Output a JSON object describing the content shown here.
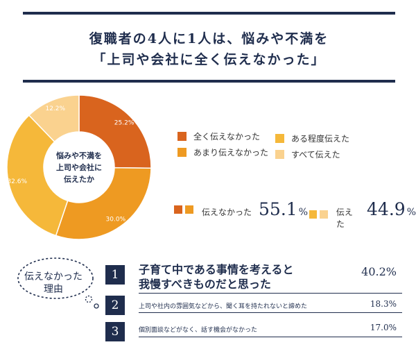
{
  "headline": {
    "line1": "復職者の4人に1人は、悩みや不満を",
    "line2": "「上司や会社に全く伝えなかった」"
  },
  "chart_data": {
    "type": "pie",
    "center_label": [
      "悩みや不満を",
      "上司や会社に",
      "伝えたか"
    ],
    "slices": [
      {
        "label": "全く伝えなかった",
        "value": 25.2,
        "value_label": "25.2%",
        "color": "#d9641e"
      },
      {
        "label": "あまり伝えなかった",
        "value": 30.0,
        "value_label": "30.0%",
        "color": "#ee9a22"
      },
      {
        "label": "ある程度伝えた",
        "value": 32.6,
        "value_label": "32.6%",
        "color": "#f5b83a"
      },
      {
        "label": "すべて伝えた",
        "value": 12.2,
        "value_label": "12.2%",
        "color": "#fad28f"
      }
    ],
    "legend_placement": "right"
  },
  "summary": {
    "not_told": {
      "label": "伝えなかった",
      "value": "55.1",
      "unit": "%"
    },
    "told": {
      "label": "伝えた",
      "value": "44.9",
      "unit": "%"
    }
  },
  "reasons": {
    "bubble_lines": [
      "伝えなかった",
      "理由"
    ],
    "items": [
      {
        "number": "1",
        "lines": [
          "子育て中である事情を考えると",
          "我慢すべきものだと思った"
        ],
        "value": "40.2%"
      },
      {
        "number": "2",
        "lines": [
          "上司や社内の雰囲気などから、聞く耳を持たれないと諦めた"
        ],
        "value": "18.3%"
      },
      {
        "number": "3",
        "lines": [
          "個別面談などがなく、話す機会がなかった"
        ],
        "value": "17.0%"
      }
    ]
  }
}
